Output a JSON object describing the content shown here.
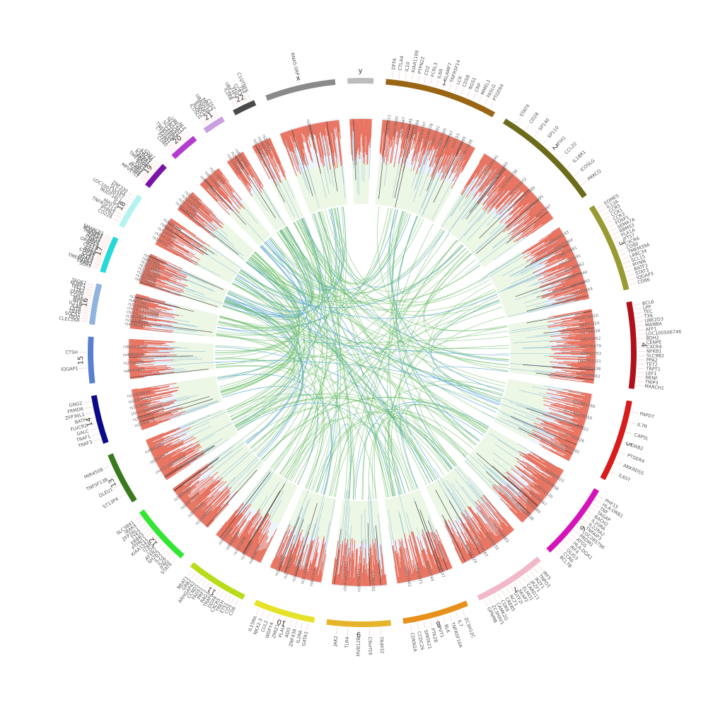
{
  "chart_data": {
    "type": "circos",
    "title": "",
    "chromosomes": [
      {
        "label": "1",
        "length": 249,
        "color": "#996515"
      },
      {
        "label": "2",
        "length": 243,
        "color": "#6b6b1a"
      },
      {
        "label": "3",
        "length": 198,
        "color": "#9a9a35"
      },
      {
        "label": "4",
        "length": 191,
        "color": "#b0101a"
      },
      {
        "label": "5",
        "length": 181,
        "color": "#d81b1b"
      },
      {
        "label": "6",
        "length": 171,
        "color": "#d413b8"
      },
      {
        "label": "7",
        "length": 159,
        "color": "#f0b8c8"
      },
      {
        "label": "8",
        "length": 146,
        "color": "#e8901c"
      },
      {
        "label": "9",
        "length": 141,
        "color": "#e6b42a"
      },
      {
        "label": "10",
        "length": 136,
        "color": "#e6e22a"
      },
      {
        "label": "11",
        "length": 135,
        "color": "#b8dc1a"
      },
      {
        "label": "12",
        "length": 134,
        "color": "#33e633"
      },
      {
        "label": "13",
        "length": 115,
        "color": "#3a7a1e"
      },
      {
        "label": "14",
        "length": 107,
        "color": "#0b0b8a"
      },
      {
        "label": "15",
        "length": 102,
        "color": "#5a7fd0"
      },
      {
        "label": "16",
        "length": 90,
        "color": "#90b4e0"
      },
      {
        "label": "17",
        "length": 81,
        "color": "#27d8d8"
      },
      {
        "label": "18",
        "length": 78,
        "color": "#b4f2f2"
      },
      {
        "label": "19",
        "length": 59,
        "color": "#7a14a8"
      },
      {
        "label": "20",
        "length": 63,
        "color": "#b43ad0"
      },
      {
        "label": "21",
        "length": 48,
        "color": "#c8a0e0"
      },
      {
        "label": "22",
        "length": 51,
        "color": "#4a4a4a"
      },
      {
        "label": "x",
        "length": 155,
        "color": "#8a8a8a"
      },
      {
        "label": "y",
        "length": 57,
        "color": "#bdbdbd"
      }
    ],
    "tracks": {
      "histogram_color": "#e8604a",
      "band_colors": [
        "#eef4fb",
        "#ecf7e6"
      ],
      "link_colors": [
        "#6fbf6a",
        "#5aa6d6"
      ]
    },
    "gene_labels": [
      {
        "chrom": "1",
        "labels": [
          "DFFA",
          "CTLA4",
          "IL10",
          "KIAA1109",
          "PTPN22",
          "CD2",
          "FCRL3",
          "IL6R",
          "SLAMF7",
          "TNFRSF14",
          "LCK",
          "CD58",
          "RGS1",
          "CRP",
          "MMEL1",
          "FASLG",
          "PTGER4"
        ]
      },
      {
        "chrom": "2",
        "labels": [
          "STAT4",
          "CD28",
          "SP140",
          "SP110",
          "IFIH1",
          "CCL20",
          "IL18R1",
          "ICOSLG",
          "PRKCQ"
        ]
      },
      {
        "chrom": "3",
        "labels": [
          "EOMES",
          "IL12A",
          "CCR5",
          "CCR1",
          "CCR3",
          "FOXP1",
          "SEMA7A",
          "RBMS3",
          "PLA1A",
          "IFT57",
          "CXCR6",
          "CD80",
          "TMEM39A",
          "LRRC34",
          "SCL15",
          "MYNN",
          "BATF2",
          "STAT3",
          "IQGAP3",
          "CD86"
        ]
      },
      {
        "chrom": "4",
        "labels": [
          "BCL6",
          "LPP",
          "TEC",
          "TXK",
          "UBE2D3",
          "MANBA",
          "AFF1",
          "LOC100506746",
          "BDH2",
          "CENPE",
          "CXCR4",
          "NFKB1",
          "SLC9B2",
          "PPA2",
          "TET2",
          "TRPT1",
          "LEF1",
          "NENF",
          "TNIP3",
          "MARCH1"
        ]
      },
      {
        "chrom": "5",
        "labels": [
          "PAPD7",
          "IL7R",
          "CAPSL",
          "DAB2",
          "PTGER4",
          "ANKRD55",
          "IL6ST"
        ]
      },
      {
        "chrom": "6",
        "labels": [
          "PHF15",
          "HLA-DRB1",
          "TNF",
          "TAGAP",
          "BACH2",
          "IL20RA",
          "IL22RA2",
          "TNFAIP3",
          "LOC285796",
          "PRDM1",
          "ATG5",
          "HLA-DQA1",
          "IRF4",
          "OLIG3",
          "CCR6",
          "BCL7B"
        ]
      },
      {
        "chrom": "7",
        "labels": [
          "IRF5",
          "TNPO3",
          "IKZF1",
          "JAZF1",
          "CARD11",
          "ELMO1",
          "SKAP2",
          "GTF2I",
          "NCF1",
          "CREB5",
          "CDK6",
          "CAMK2G",
          "ZC3HAV1",
          "GPNMB"
        ]
      },
      {
        "chrom": "8",
        "labels": [
          "ZC3H12C",
          "IL7",
          "TNFRSF10A",
          "BLK",
          "PVT1",
          "PTK2B",
          "SPATA21",
          "CCDC26",
          "CDKN2A"
        ]
      },
      {
        "chrom": "9",
        "labels": [
          "TRIM32",
          "C9orf16",
          "MVB12B",
          "TLR4",
          "JAK2"
        ]
      },
      {
        "chrom": "10",
        "labels": [
          "GATA3",
          "IL2RA",
          "ZNF438",
          "ADO",
          "PLAU",
          "ZMIZ1",
          "WDFY4",
          "CUL2",
          "NKX2-3",
          "IL15RA"
        ]
      },
      {
        "chrom": "11",
        "labels": [
          "CD6",
          "CD5",
          "ETS1",
          "TREH",
          "CXCR5",
          "DDX6",
          "TRAF6",
          "RAG1",
          "PRF1",
          "FADS1",
          "CCND1",
          "ARHGAP42",
          "GRB2",
          "NEAT1"
        ]
      },
      {
        "chrom": "12",
        "labels": [
          "STAT6",
          "IFNG",
          "IL26",
          "IL22",
          "SH2B3",
          "ATXN2",
          "CD4",
          "LTBR",
          "KIAA1542",
          "PTPN11",
          "ERBB3",
          "TYK2",
          "ZFP36L1",
          "IRAK4",
          "SLC38A1"
        ]
      },
      {
        "chrom": "13",
        "labels": [
          "ST13P4",
          "DLEU1",
          "TNFSF13B",
          "MIR4508"
        ]
      },
      {
        "chrom": "14",
        "labels": [
          "TRAF3",
          "TRAF1",
          "GALC",
          "FLVCR2",
          "BATF",
          "ZFP36L1",
          "FRMD6",
          "GNG2"
        ]
      },
      {
        "chrom": "15",
        "labels": [
          "IQGAP1",
          "CTSH"
        ]
      },
      {
        "chrom": "16",
        "labels": [
          "CLEC16A",
          "DEXI",
          "SOCS1",
          "TBX6",
          "CIITA",
          "IL4R",
          "IL21R",
          "IRF8",
          "MAF",
          "CDH1",
          "ZFP90",
          "TYK2",
          "YPEL3",
          "NUPR1",
          "TAOK2"
        ]
      },
      {
        "chrom": "17",
        "labels": [
          "SOX9",
          "ERBB2",
          "TMEM106A",
          "PGAP3",
          "IKZF3",
          "CCR7",
          "STAT5B",
          "NOS2",
          "CCL2",
          "CCL13",
          "IKZF3",
          "ORMDL3",
          "MPAL",
          "DHX58",
          "ZPBP2",
          "TNFSF13",
          "PLEKHH3",
          "SMARCE1"
        ]
      },
      {
        "chrom": "18",
        "labels": [
          "CD226",
          "PTPN2",
          "TNFRSF11A",
          "MAST2",
          "IL4",
          "NUDT16L1",
          "LOC100130357",
          "SLC26A",
          "ZNF330"
        ]
      },
      {
        "chrom": "19",
        "labels": [
          "MPV17L2",
          "JUNB",
          "KCNN4",
          "ICAM3",
          "TYK2",
          "FUT2",
          "TMEM50B",
          "PRKD2",
          "IL12RB1",
          "CCDC75",
          "IL27RA",
          "CD37"
        ]
      },
      {
        "chrom": "20",
        "labels": [
          "CD40",
          "PTPN1",
          "CYP24A1",
          "TNFRSF6B",
          "CEBPB",
          "SLC24A3",
          "TAGLN2",
          "SLC13A3",
          "UBE2L3",
          "HLF"
        ]
      },
      {
        "chrom": "21",
        "labels": [
          "ICOSLG",
          "RUNX1",
          "IFNAR1",
          "UBASH3A",
          "MRPL3",
          "CTSZ"
        ]
      },
      {
        "chrom": "22",
        "labels": [
          "IL2RB",
          "UBE2L3",
          "YDJC",
          "CCR3",
          "TEF",
          "C1QTNF6"
        ]
      },
      {
        "chrom": "x",
        "labels": [
          "RNA5-SRP"
        ]
      },
      {
        "chrom": "y",
        "labels": []
      }
    ],
    "snp_labels": [
      {
        "chrom": "1",
        "labels": [
          "rs6679677",
          "rs2476601",
          "rs3761847",
          "rs2228145",
          "rs7528684",
          "rs2300747",
          "rs11580078",
          "rs4657041",
          "rs6667605",
          "rs859767",
          "rs12123",
          "rs4074995",
          "rs10911628"
        ]
      },
      {
        "chrom": "2",
        "labels": [
          "rs11889341",
          "rs7574865",
          "rs17696736",
          "rs10201872",
          "rs2111485",
          "rs13397985",
          "rs917997"
        ]
      },
      {
        "chrom": "3",
        "labels": [
          "rs36045143",
          "rs1027864",
          "rs4679081",
          "rs13315591",
          "rs2188962",
          "rs13071640",
          "rs6441961",
          "rs3774959"
        ]
      },
      {
        "chrom": "4",
        "labels": [
          "rs13136820",
          "rs6837324",
          "rs2705616",
          "rs6533052",
          "rs2736479",
          "rs6962763",
          "rs17051321",
          "rs4361438",
          "rs72589663"
        ]
      },
      {
        "chrom": "5",
        "labels": [
          "rs34681760",
          "chr5:40429350",
          "rs1031622",
          "rs7731626",
          "rs2651202"
        ]
      },
      {
        "chrom": "6",
        "labels": [
          "rs3093023",
          "rs2294958",
          "rs9372120",
          "rs1234567",
          "rs212389",
          "rs72928038"
        ]
      },
      {
        "chrom": "7",
        "labels": [
          "rs17168663",
          "rs1005233",
          "rs11978267",
          "rs2106324"
        ]
      },
      {
        "chrom": "8",
        "labels": [
          "rs2736337",
          "rs1533744",
          "rs4410871",
          "rs2517461"
        ]
      },
      {
        "chrom": "9",
        "labels": [
          "rs7863152",
          "rs34734441",
          "chr9:34713232"
        ]
      },
      {
        "chrom": "10",
        "labels": [
          "rs947474",
          "rs3118470",
          "rs12722495",
          "rs10795791",
          "rs1250550"
        ]
      },
      {
        "chrom": "11",
        "labels": [
          "rs4938573",
          "rs7930237",
          "rs1571878",
          "rs6589939",
          "rs3184504"
        ]
      },
      {
        "chrom": "12",
        "labels": [
          "rs11052877",
          "rs1678542",
          "rs10877013",
          "rs1800682"
        ]
      },
      {
        "chrom": "13",
        "labels": [
          "chr13:100026952",
          "rs9557217",
          "rs4941553"
        ]
      },
      {
        "chrom": "14",
        "labels": [
          "rs2143178",
          "rs2069895",
          "chr14:69257469",
          "rs2234085",
          "rs12435031",
          "rs11628659"
        ]
      },
      {
        "chrom": "15",
        "labels": [
          "rs8042345",
          "rs2292239",
          "rs4886833",
          "rs62013236"
        ]
      },
      {
        "chrom": "16",
        "labels": [
          "rs4780355",
          "rs12708716",
          "rs3809627",
          "chr16:11350935",
          "chr16:11213050",
          "rs2286974",
          "rs405345",
          "rs3484750"
        ]
      },
      {
        "chrom": "17",
        "labels": [
          "rs8020816",
          "rs3853839",
          "rs2290400",
          "rs11657991",
          "rs7225495",
          "rs1021004",
          "rs882469",
          "rs9303277"
        ]
      },
      {
        "chrom": "18",
        "labels": [
          "rs1893217",
          "rs2542151",
          "rs7240004",
          "rs8069176",
          "rs2078184"
        ]
      },
      {
        "chrom": "19",
        "labels": [
          "rs34536443",
          "rs12720356",
          "rs1019321",
          "rs2304256"
        ]
      },
      {
        "chrom": "20",
        "labels": [
          "rs4810485",
          "rs6032662",
          "rs2179920"
        ]
      },
      {
        "chrom": "21",
        "labels": [
          "rs11203203",
          "rs2836878",
          "rs9979383"
        ]
      },
      {
        "chrom": "22",
        "labels": [
          "rs5754217",
          "rs2069772",
          "rs229541"
        ]
      },
      {
        "chrom": "x",
        "labels": [
          "rs2807287"
        ]
      },
      {
        "chrom": "y",
        "labels": []
      }
    ]
  }
}
